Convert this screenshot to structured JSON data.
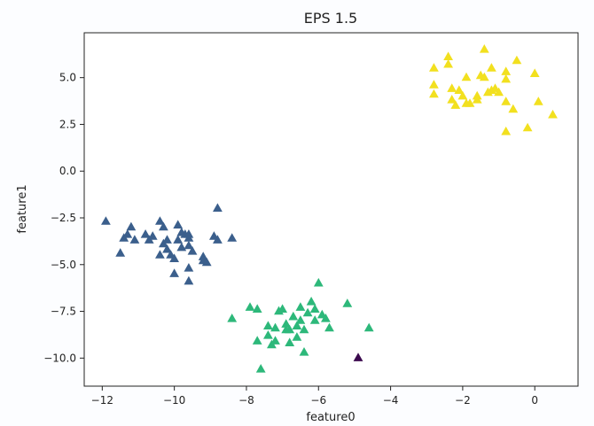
{
  "chart_data": {
    "type": "scatter",
    "title": "EPS 1.5",
    "xlabel": "feature0",
    "ylabel": "feature1",
    "xlim": [
      -12.5,
      1.2
    ],
    "ylim": [
      -11.5,
      7.4
    ],
    "xticks": [
      -12,
      -10,
      -8,
      -6,
      -4,
      -2,
      0
    ],
    "xtick_labels": [
      "−12",
      "−10",
      "−8",
      "−6",
      "−4",
      "−2",
      "0"
    ],
    "yticks": [
      5.0,
      2.5,
      0.0,
      -2.5,
      -5.0,
      -7.5,
      -10.0
    ],
    "ytick_labels": [
      "5.0",
      "2.5",
      "0.0",
      "−2.5",
      "−5.0",
      "−7.5",
      "−10.0"
    ],
    "grid": false,
    "legend": "none",
    "marker": "triangle",
    "series": [
      {
        "color": "#3b5f8c",
        "points": [
          [
            -11.9,
            -2.7
          ],
          [
            -11.4,
            -3.6
          ],
          [
            -11.2,
            -3.0
          ],
          [
            -11.1,
            -3.7
          ],
          [
            -11.3,
            -3.4
          ],
          [
            -11.5,
            -4.4
          ],
          [
            -10.8,
            -3.4
          ],
          [
            -10.7,
            -3.7
          ],
          [
            -10.6,
            -3.5
          ],
          [
            -10.4,
            -2.7
          ],
          [
            -10.3,
            -3.0
          ],
          [
            -10.3,
            -3.9
          ],
          [
            -10.4,
            -4.5
          ],
          [
            -10.2,
            -4.2
          ],
          [
            -10.1,
            -4.5
          ],
          [
            -10.0,
            -4.7
          ],
          [
            -10.0,
            -5.5
          ],
          [
            -10.2,
            -3.7
          ],
          [
            -9.9,
            -2.9
          ],
          [
            -9.8,
            -3.3
          ],
          [
            -9.9,
            -3.7
          ],
          [
            -9.7,
            -3.4
          ],
          [
            -9.6,
            -3.6
          ],
          [
            -9.8,
            -4.1
          ],
          [
            -9.6,
            -4.0
          ],
          [
            -9.6,
            -3.4
          ],
          [
            -9.5,
            -4.3
          ],
          [
            -9.6,
            -5.2
          ],
          [
            -9.6,
            -5.9
          ],
          [
            -9.2,
            -4.6
          ],
          [
            -9.1,
            -4.9
          ],
          [
            -9.2,
            -4.8
          ],
          [
            -8.9,
            -3.5
          ],
          [
            -8.8,
            -3.7
          ],
          [
            -8.8,
            -2.0
          ],
          [
            -8.4,
            -3.6
          ]
        ]
      },
      {
        "color": "#2db87a",
        "points": [
          [
            -8.4,
            -7.9
          ],
          [
            -7.9,
            -7.3
          ],
          [
            -7.7,
            -9.1
          ],
          [
            -7.7,
            -7.4
          ],
          [
            -7.6,
            -10.6
          ],
          [
            -7.4,
            -8.3
          ],
          [
            -7.4,
            -8.8
          ],
          [
            -7.3,
            -9.3
          ],
          [
            -7.2,
            -8.4
          ],
          [
            -7.2,
            -9.1
          ],
          [
            -7.1,
            -7.5
          ],
          [
            -7.0,
            -7.4
          ],
          [
            -6.9,
            -8.5
          ],
          [
            -6.9,
            -8.2
          ],
          [
            -6.8,
            -8.5
          ],
          [
            -6.8,
            -9.2
          ],
          [
            -6.7,
            -7.8
          ],
          [
            -6.6,
            -8.3
          ],
          [
            -6.6,
            -8.9
          ],
          [
            -6.5,
            -7.3
          ],
          [
            -6.5,
            -8.0
          ],
          [
            -6.4,
            -8.5
          ],
          [
            -6.4,
            -9.7
          ],
          [
            -6.3,
            -7.6
          ],
          [
            -6.2,
            -7.0
          ],
          [
            -6.1,
            -7.4
          ],
          [
            -6.1,
            -8.0
          ],
          [
            -6.0,
            -6.0
          ],
          [
            -5.9,
            -7.7
          ],
          [
            -5.8,
            -7.9
          ],
          [
            -5.7,
            -8.4
          ],
          [
            -5.2,
            -7.1
          ],
          [
            -4.6,
            -8.4
          ]
        ]
      },
      {
        "color": "#f2e01f",
        "points": [
          [
            -2.8,
            5.5
          ],
          [
            -2.8,
            4.6
          ],
          [
            -2.8,
            4.1
          ],
          [
            -2.4,
            6.1
          ],
          [
            -2.4,
            5.7
          ],
          [
            -2.3,
            4.4
          ],
          [
            -2.3,
            3.8
          ],
          [
            -2.2,
            3.5
          ],
          [
            -2.1,
            4.3
          ],
          [
            -2.0,
            4.0
          ],
          [
            -1.9,
            3.6
          ],
          [
            -1.9,
            5.0
          ],
          [
            -1.8,
            3.6
          ],
          [
            -1.6,
            4.0
          ],
          [
            -1.6,
            3.8
          ],
          [
            -1.5,
            5.1
          ],
          [
            -1.4,
            5.0
          ],
          [
            -1.4,
            6.5
          ],
          [
            -1.3,
            4.2
          ],
          [
            -1.2,
            4.3
          ],
          [
            -1.1,
            4.4
          ],
          [
            -1.2,
            5.5
          ],
          [
            -1.0,
            4.2
          ],
          [
            -0.8,
            5.3
          ],
          [
            -0.8,
            4.9
          ],
          [
            -0.8,
            3.7
          ],
          [
            -0.8,
            2.1
          ],
          [
            -0.6,
            3.3
          ],
          [
            -0.5,
            5.9
          ],
          [
            -0.2,
            2.3
          ],
          [
            0.0,
            5.2
          ],
          [
            0.1,
            3.7
          ],
          [
            0.5,
            3.0
          ]
        ]
      },
      {
        "color": "#3b0a4e",
        "points": [
          [
            -4.9,
            -10.0
          ]
        ]
      }
    ]
  }
}
